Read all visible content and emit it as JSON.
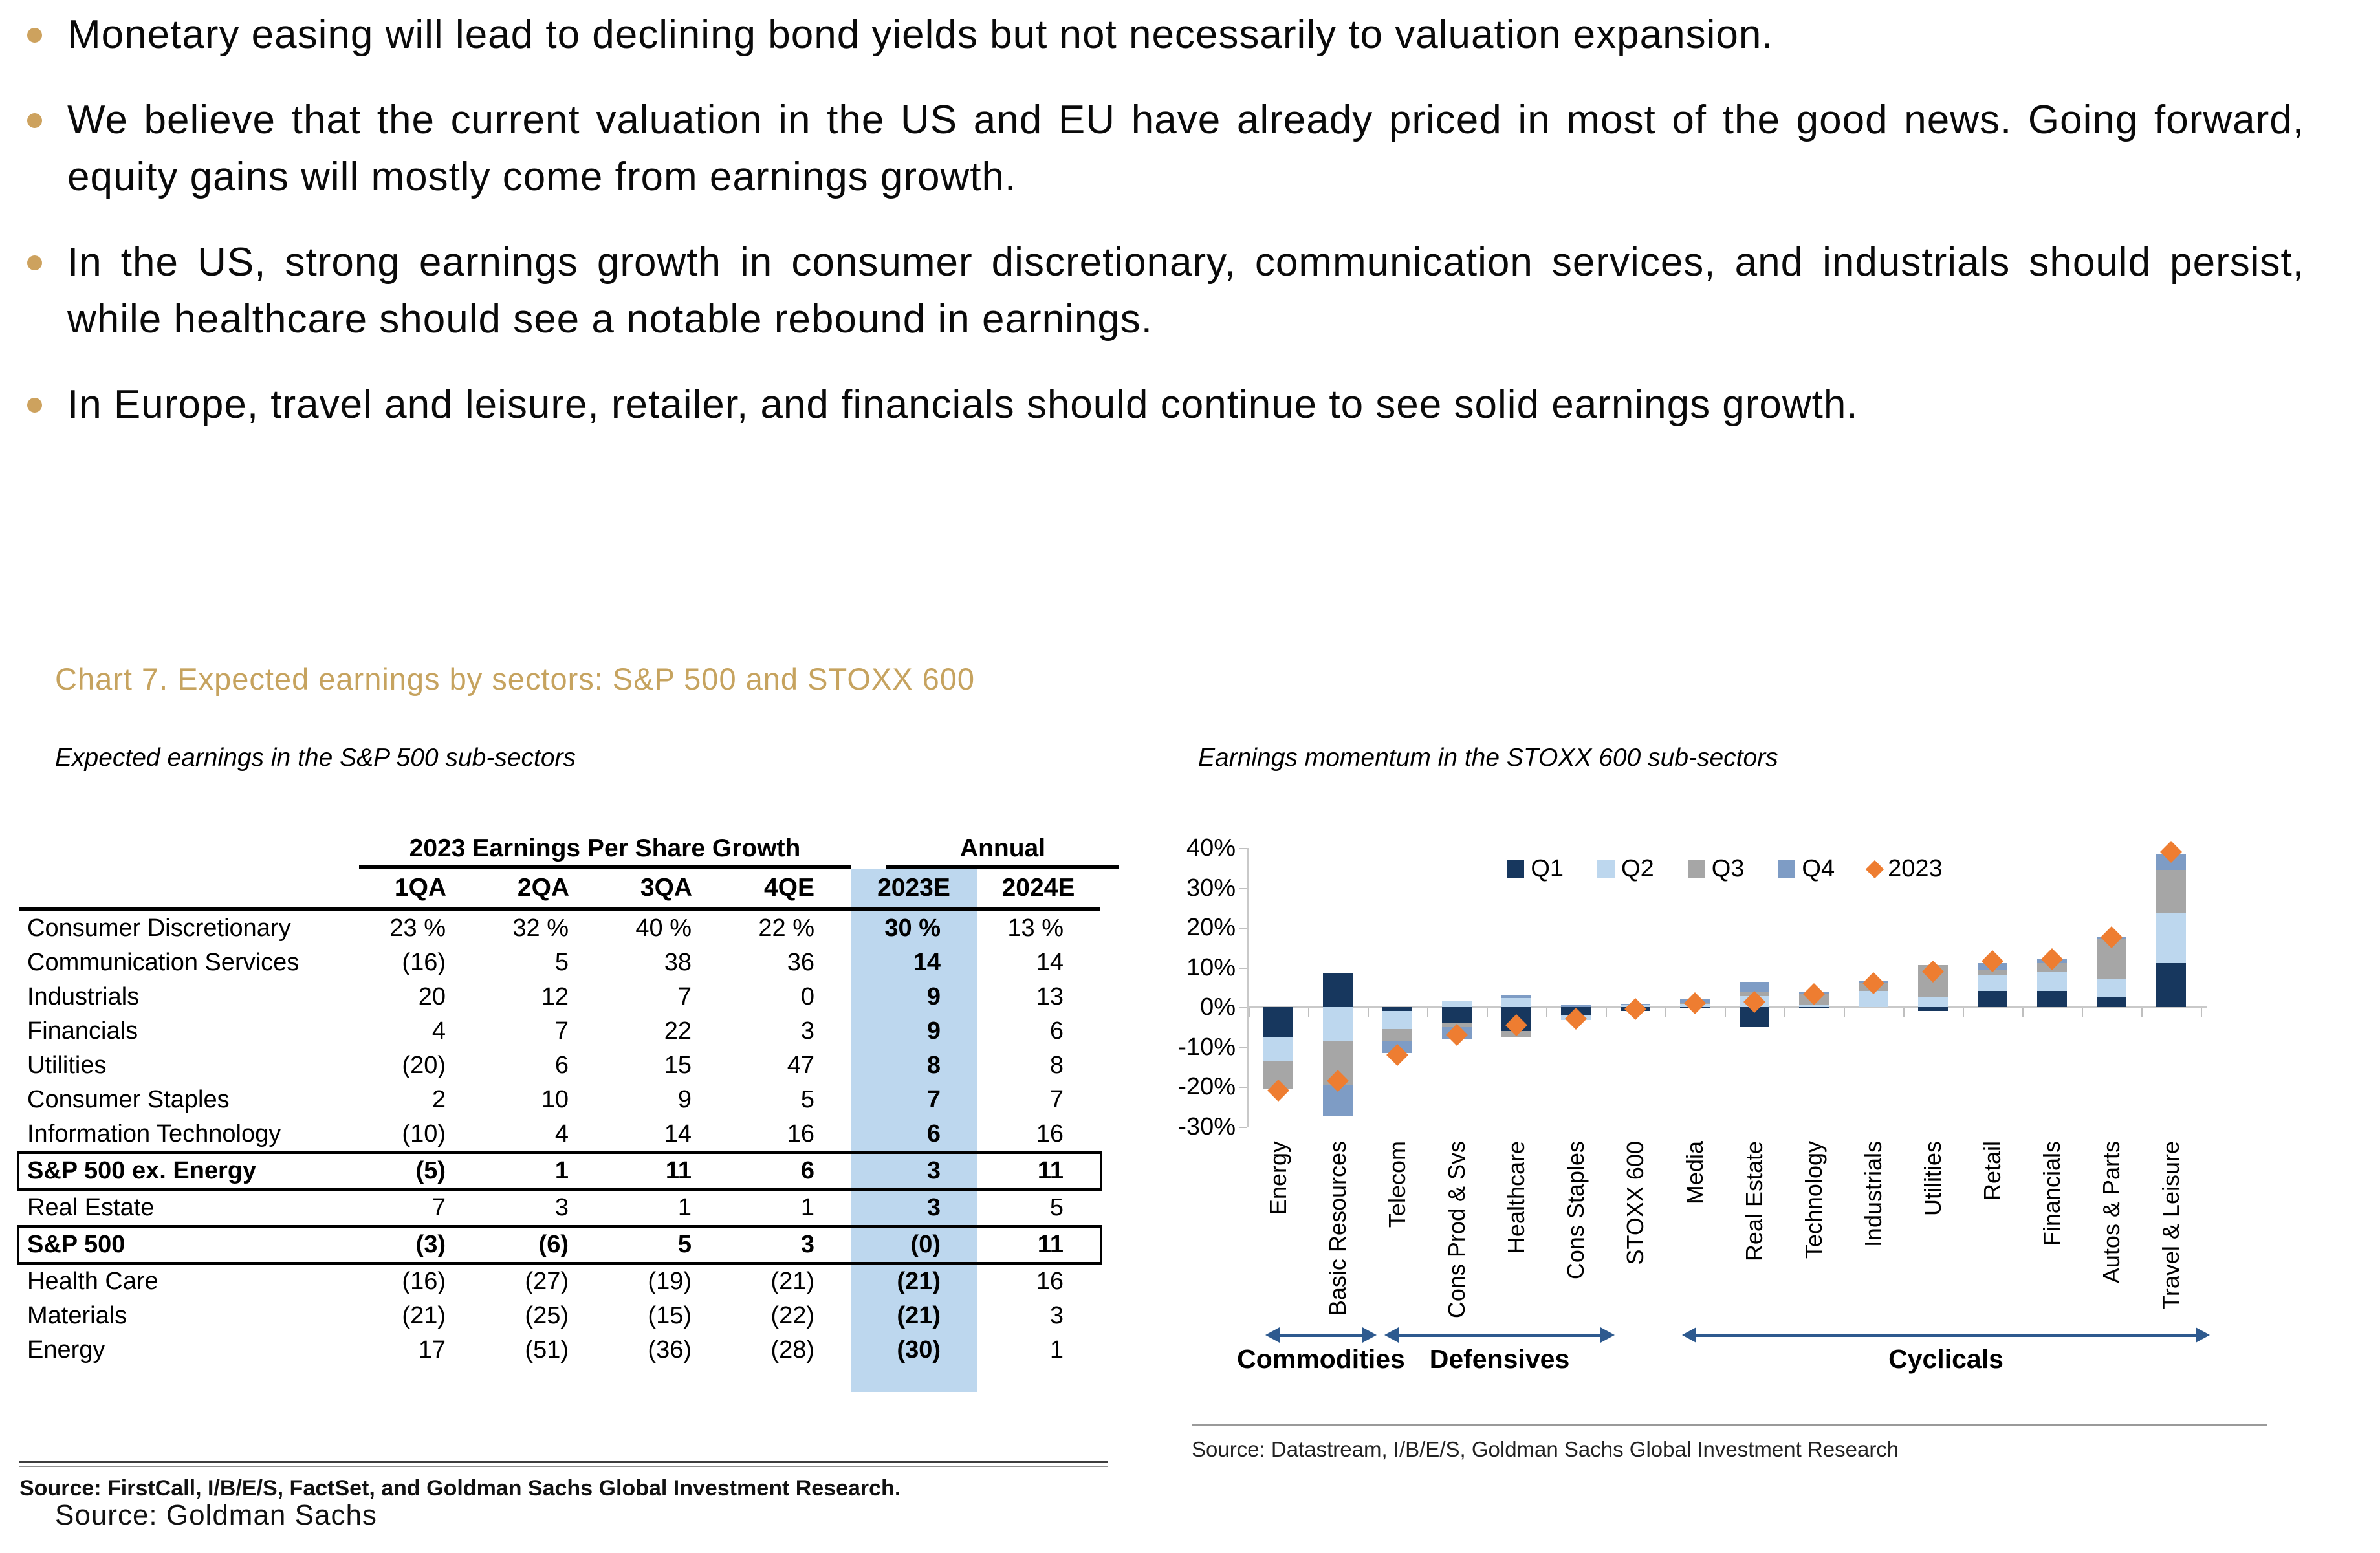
{
  "bullets": {
    "marker_color": "#CDA25E",
    "items": [
      "Monetary easing will lead to declining bond yields but not necessarily to valuation expansion.",
      "We believe that the current valuation in the US and EU have already priced in most of the good news. Going forward, equity gains will mostly come from earnings growth.",
      "In the US, strong earnings growth in consumer discretionary, communication services, and industrials should persist, while healthcare should see a notable rebound in earnings.",
      "In Europe, travel and leisure, retailer, and financials should continue to see solid earnings growth."
    ]
  },
  "chart_section": {
    "title": "Chart 7. Expected earnings by sectors: S&P 500 and STOXX 600",
    "title_color": "#C6A35F",
    "left_subtitle": "Expected earnings in the S&P 500 sub-sectors",
    "right_subtitle": "Earnings momentum in the STOXX 600 sub-sectors"
  },
  "table": {
    "group_headers": [
      "2023 Earnings Per Share Growth",
      "Annual"
    ],
    "columns": [
      "1QA",
      "2QA",
      "3QA",
      "4QE",
      "2023E",
      "2024E"
    ],
    "highlight_column": "2023E",
    "highlight_color": "#BDD7EE",
    "rows": [
      {
        "label": "Consumer Discretionary",
        "values": [
          "23 %",
          "32 %",
          "40 %",
          "22 %",
          "30 %",
          "13 %"
        ],
        "bold": false,
        "boxed": false
      },
      {
        "label": "Communication Services",
        "values": [
          "(16)",
          "5",
          "38",
          "36",
          "14",
          "14"
        ],
        "bold": false,
        "boxed": false
      },
      {
        "label": "Industrials",
        "values": [
          "20",
          "12",
          "7",
          "0",
          "9",
          "13"
        ],
        "bold": false,
        "boxed": false
      },
      {
        "label": "Financials",
        "values": [
          "4",
          "7",
          "22",
          "3",
          "9",
          "6"
        ],
        "bold": false,
        "boxed": false
      },
      {
        "label": "Utilities",
        "values": [
          "(20)",
          "6",
          "15",
          "47",
          "8",
          "8"
        ],
        "bold": false,
        "boxed": false
      },
      {
        "label": "Consumer Staples",
        "values": [
          "2",
          "10",
          "9",
          "5",
          "7",
          "7"
        ],
        "bold": false,
        "boxed": false
      },
      {
        "label": "Information Technology",
        "values": [
          "(10)",
          "4",
          "14",
          "16",
          "6",
          "16"
        ],
        "bold": false,
        "boxed": false
      },
      {
        "label": "S&P 500 ex. Energy",
        "values": [
          "(5)",
          "1",
          "11",
          "6",
          "3",
          "11"
        ],
        "bold": true,
        "boxed": true
      },
      {
        "label": "Real Estate",
        "values": [
          "7",
          "3",
          "1",
          "1",
          "3",
          "5"
        ],
        "bold": false,
        "boxed": false
      },
      {
        "label": "S&P 500",
        "values": [
          "(3)",
          "(6)",
          "5",
          "3",
          "(0)",
          "11"
        ],
        "bold": true,
        "boxed": true
      },
      {
        "label": "Health Care",
        "values": [
          "(16)",
          "(27)",
          "(19)",
          "(21)",
          "(21)",
          "16"
        ],
        "bold": false,
        "boxed": false
      },
      {
        "label": "Materials",
        "values": [
          "(21)",
          "(25)",
          "(15)",
          "(22)",
          "(21)",
          "3"
        ],
        "bold": false,
        "boxed": false
      },
      {
        "label": "Energy",
        "values": [
          "17",
          "(51)",
          "(36)",
          "(28)",
          "(30)",
          "1"
        ],
        "bold": false,
        "boxed": false
      }
    ],
    "source": "Source: FirstCall, I/B/E/S, FactSet, and Goldman Sachs Global Investment Research."
  },
  "chart_data": {
    "type": "bar",
    "stacked": true,
    "unit": "percent",
    "ylim": [
      -30,
      40
    ],
    "yticks": [
      40,
      30,
      20,
      10,
      0,
      -10,
      -20,
      -30
    ],
    "grid": false,
    "legend_position": "top-center",
    "categories": [
      "Energy",
      "Basic Resources",
      "Telecom",
      "Cons Prod & Svs",
      "Healthcare",
      "Cons Staples",
      "STOXX 600",
      "Media",
      "Real Estate",
      "Technology",
      "Industrials",
      "Utilities",
      "Retail",
      "Financials",
      "Autos & Parts",
      "Travel & Leisure"
    ],
    "series": [
      {
        "name": "Q1",
        "color": "#17375E",
        "values": [
          -7.5,
          8.5,
          -1,
          -4,
          -6,
          -2,
          -0.9,
          -0.4,
          -5,
          -0.4,
          0,
          -1,
          4,
          4,
          2.5,
          11
        ]
      },
      {
        "name": "Q2",
        "color": "#BDD7EE",
        "values": [
          -6,
          -8.5,
          -4.5,
          1.5,
          2.2,
          -1.2,
          0.5,
          0.8,
          2.7,
          0.5,
          4,
          2.5,
          4,
          5,
          4.5,
          12.5
        ]
      },
      {
        "name": "Q3",
        "color": "#A6A6A6",
        "values": [
          -7,
          -11,
          -3,
          -1,
          -1.6,
          0,
          0,
          0.3,
          1,
          2.7,
          2,
          8,
          1.5,
          2,
          10,
          11
        ]
      },
      {
        "name": "Q4",
        "color": "#7E9CC5",
        "values": [
          0,
          -8,
          -3,
          -3,
          0.8,
          0.7,
          0.3,
          0.9,
          2.7,
          0.5,
          0.5,
          0,
          1.5,
          1,
          0.5,
          4
        ]
      }
    ],
    "markers": {
      "name": "2023",
      "shape": "diamond",
      "color": "#EE7D31",
      "values": [
        -21,
        -18.5,
        -12,
        -7,
        -4.5,
        -3,
        -0.5,
        1,
        1.3,
        3.2,
        6,
        9,
        11.5,
        12,
        17.5,
        39
      ]
    },
    "groups": [
      {
        "label": "Commodities",
        "from": 0,
        "to": 1
      },
      {
        "label": "Defensives",
        "from": 2,
        "to": 5
      },
      {
        "label": "Cyclicals",
        "from": 7,
        "to": 15
      }
    ],
    "arrow_color": "#2E5A8F",
    "source": "Source: Datastream, I/B/E/S, Goldman Sachs Global Investment Research"
  },
  "footer": {
    "source": "Source: Goldman Sachs"
  }
}
